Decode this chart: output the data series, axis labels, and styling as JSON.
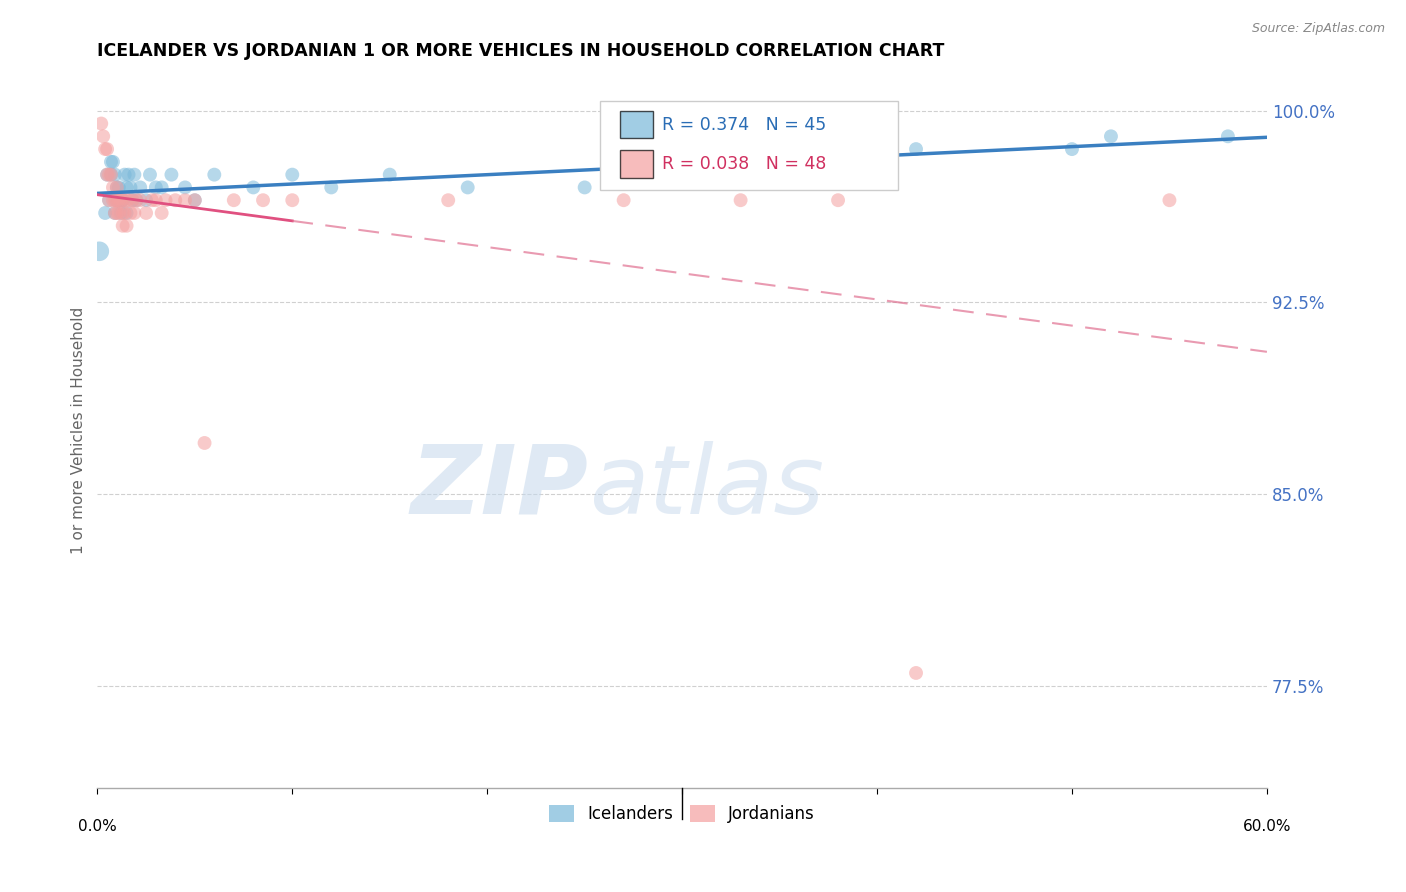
{
  "title": "ICELANDER VS JORDANIAN 1 OR MORE VEHICLES IN HOUSEHOLD CORRELATION CHART",
  "source": "Source: ZipAtlas.com",
  "ylabel": "1 or more Vehicles in Household",
  "ytick_labels": [
    "100.0%",
    "92.5%",
    "85.0%",
    "77.5%"
  ],
  "ytick_values": [
    1.0,
    0.925,
    0.85,
    0.775
  ],
  "xlim": [
    0.0,
    0.6
  ],
  "ylim": [
    0.735,
    1.015
  ],
  "watermark_zip": "ZIP",
  "watermark_atlas": "atlas",
  "legend_icelander_r": "R = 0.374",
  "legend_icelander_n": "N = 45",
  "legend_jordanian_r": "R = 0.038",
  "legend_jordanian_n": "N = 48",
  "icelander_color": "#7ab8d9",
  "jordanian_color": "#f4a0a0",
  "trendline_icelander_color": "#3a7fc1",
  "trendline_jordanian_solid_color": "#e05080",
  "trendline_jordanian_dash_color": "#e07090",
  "background_color": "#ffffff",
  "grid_color": "#d0d0d0",
  "icelander_x": [
    0.001,
    0.004,
    0.005,
    0.006,
    0.007,
    0.007,
    0.008,
    0.009,
    0.009,
    0.01,
    0.01,
    0.011,
    0.011,
    0.012,
    0.012,
    0.013,
    0.013,
    0.014,
    0.015,
    0.015,
    0.016,
    0.017,
    0.018,
    0.019,
    0.02,
    0.022,
    0.025,
    0.027,
    0.03,
    0.033,
    0.038,
    0.045,
    0.05,
    0.06,
    0.08,
    0.1,
    0.12,
    0.15,
    0.19,
    0.25,
    0.3,
    0.42,
    0.5,
    0.52,
    0.58
  ],
  "icelander_y": [
    0.945,
    0.96,
    0.975,
    0.965,
    0.98,
    0.975,
    0.98,
    0.96,
    0.975,
    0.97,
    0.965,
    0.97,
    0.965,
    0.96,
    0.965,
    0.965,
    0.965,
    0.975,
    0.97,
    0.96,
    0.975,
    0.97,
    0.965,
    0.975,
    0.965,
    0.97,
    0.965,
    0.975,
    0.97,
    0.97,
    0.975,
    0.97,
    0.965,
    0.975,
    0.97,
    0.975,
    0.97,
    0.975,
    0.97,
    0.97,
    0.975,
    0.985,
    0.985,
    0.99,
    0.99
  ],
  "jordanian_x": [
    0.002,
    0.003,
    0.004,
    0.005,
    0.005,
    0.006,
    0.006,
    0.007,
    0.008,
    0.008,
    0.009,
    0.009,
    0.01,
    0.01,
    0.01,
    0.011,
    0.011,
    0.012,
    0.013,
    0.013,
    0.013,
    0.014,
    0.015,
    0.015,
    0.016,
    0.017,
    0.018,
    0.019,
    0.02,
    0.022,
    0.025,
    0.028,
    0.03,
    0.033,
    0.035,
    0.04,
    0.045,
    0.05,
    0.055,
    0.07,
    0.085,
    0.1,
    0.18,
    0.27,
    0.33,
    0.38,
    0.42,
    0.55
  ],
  "jordanian_y": [
    0.995,
    0.99,
    0.985,
    0.985,
    0.975,
    0.975,
    0.965,
    0.975,
    0.97,
    0.965,
    0.965,
    0.96,
    0.97,
    0.965,
    0.96,
    0.965,
    0.96,
    0.965,
    0.965,
    0.96,
    0.955,
    0.96,
    0.965,
    0.955,
    0.965,
    0.96,
    0.965,
    0.96,
    0.965,
    0.965,
    0.96,
    0.965,
    0.965,
    0.96,
    0.965,
    0.965,
    0.965,
    0.965,
    0.87,
    0.965,
    0.965,
    0.965,
    0.965,
    0.965,
    0.965,
    0.965,
    0.78,
    0.965
  ],
  "icelander_sizes": [
    200,
    100,
    100,
    100,
    100,
    100,
    100,
    100,
    100,
    100,
    100,
    100,
    100,
    100,
    100,
    100,
    100,
    100,
    100,
    100,
    100,
    100,
    100,
    100,
    100,
    100,
    100,
    100,
    100,
    100,
    100,
    100,
    100,
    100,
    100,
    100,
    100,
    100,
    100,
    100,
    100,
    100,
    100,
    100,
    100
  ],
  "jordanian_sizes": [
    100,
    100,
    100,
    100,
    100,
    100,
    100,
    100,
    100,
    100,
    100,
    100,
    100,
    100,
    100,
    100,
    100,
    100,
    100,
    100,
    100,
    100,
    100,
    100,
    100,
    100,
    100,
    100,
    100,
    100,
    100,
    100,
    100,
    100,
    100,
    100,
    100,
    100,
    100,
    100,
    100,
    100,
    100,
    100,
    100,
    100,
    100,
    100
  ]
}
